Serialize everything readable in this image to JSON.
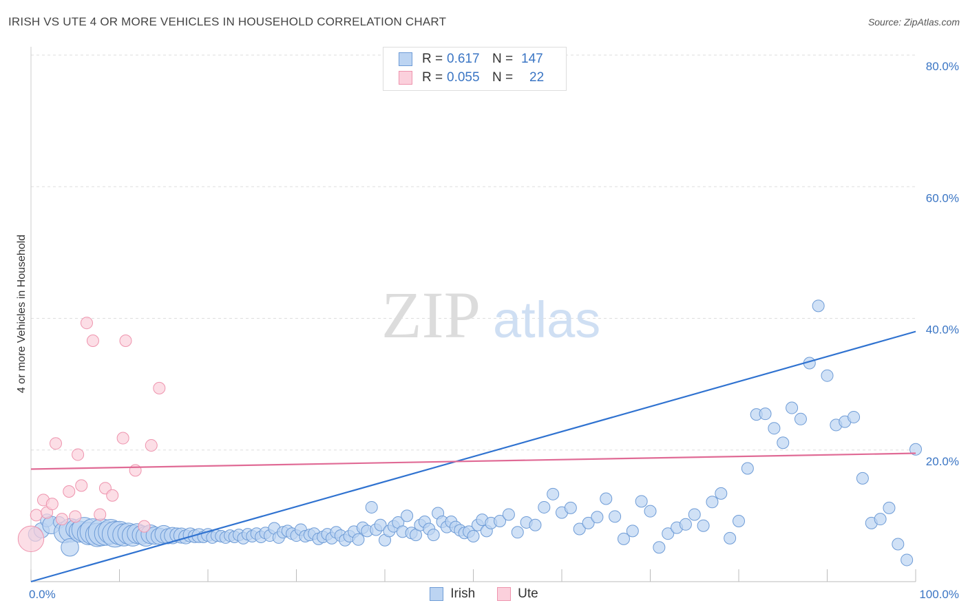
{
  "title": "IRISH VS UTE 4 OR MORE VEHICLES IN HOUSEHOLD CORRELATION CHART",
  "source": "Source: ZipAtlas.com",
  "watermark": {
    "zip": "ZIP",
    "atlas": "atlas"
  },
  "legend": {
    "rows": [
      {
        "r_label": "R =",
        "r_value": "0.617",
        "n_label": "N =",
        "n_value": "147"
      },
      {
        "r_label": "R =",
        "r_value": "0.055",
        "n_label": "N =",
        "n_value": "22"
      }
    ]
  },
  "colors": {
    "irish_fill": "#bcd4f2",
    "irish_stroke": "#6d9bd6",
    "irish_line": "#2f72d0",
    "ute_fill": "#fbd0dc",
    "ute_stroke": "#ee93ad",
    "ute_line": "#e06a95",
    "tick": "#3a75c4",
    "grid": "#dddddd"
  },
  "chart_data": {
    "type": "scatter",
    "title": "IRISH VS UTE 4 OR MORE VEHICLES IN HOUSEHOLD CORRELATION CHART",
    "xlabel": "",
    "ylabel": "4 or more Vehicles in Household",
    "xlim": [
      0,
      100
    ],
    "ylim": [
      0,
      80
    ],
    "x_ticks": [
      {
        "value": 0,
        "label": "0.0%"
      },
      {
        "value": 100,
        "label": "100.0%"
      }
    ],
    "y_ticks": [
      {
        "value": 20,
        "label": "20.0%"
      },
      {
        "value": 40,
        "label": "40.0%"
      },
      {
        "value": 60,
        "label": "60.0%"
      },
      {
        "value": 80,
        "label": "80.0%"
      }
    ],
    "grid": true,
    "legend_position": "top-center",
    "series": [
      {
        "name": "Irish",
        "R": 0.617,
        "N": 147,
        "trend": {
          "x": [
            0,
            100
          ],
          "y": [
            0.0,
            38.0
          ]
        },
        "points": [
          [
            0.5,
            7.2,
            1.2
          ],
          [
            1.2,
            7.8,
            1.3
          ],
          [
            1.8,
            9.3,
            1.1
          ],
          [
            2.3,
            8.6,
            1.5
          ],
          [
            3.2,
            9.0,
            1.0
          ],
          [
            3.8,
            7.5,
            1.8
          ],
          [
            4.5,
            7.8,
            2.0
          ],
          [
            4.4,
            5.2,
            1.5
          ],
          [
            5.0,
            8.0,
            1.6
          ],
          [
            5.5,
            7.6,
            1.8
          ],
          [
            6.0,
            7.9,
            2.1
          ],
          [
            6.5,
            7.3,
            1.9
          ],
          [
            7.0,
            7.6,
            2.2
          ],
          [
            7.5,
            7.1,
            2.0
          ],
          [
            8.0,
            7.5,
            2.3
          ],
          [
            8.5,
            7.3,
            2.0
          ],
          [
            9.0,
            7.6,
            2.1
          ],
          [
            9.5,
            7.2,
            2.2
          ],
          [
            10.0,
            7.4,
            2.0
          ],
          [
            10.5,
            7.1,
            1.9
          ],
          [
            11.0,
            7.3,
            1.8
          ],
          [
            11.5,
            7.0,
            1.8
          ],
          [
            12.0,
            7.3,
            1.7
          ],
          [
            12.5,
            7.1,
            1.6
          ],
          [
            13.0,
            6.9,
            1.7
          ],
          [
            13.5,
            7.2,
            1.6
          ],
          [
            14.0,
            7.0,
            1.5
          ],
          [
            14.5,
            6.9,
            1.4
          ],
          [
            15.0,
            7.2,
            1.5
          ],
          [
            15.5,
            6.9,
            1.3
          ],
          [
            16.0,
            7.0,
            1.4
          ],
          [
            16.5,
            7.1,
            1.2
          ],
          [
            17.0,
            7.0,
            1.3
          ],
          [
            17.5,
            6.8,
            1.2
          ],
          [
            18.0,
            7.1,
            1.2
          ],
          [
            18.5,
            6.9,
            1.1
          ],
          [
            19.0,
            7.0,
            1.2
          ],
          [
            19.5,
            6.8,
            1.0
          ],
          [
            20.0,
            7.1,
            1.1
          ],
          [
            20.5,
            6.7,
            1.0
          ],
          [
            21.0,
            7.0,
            1.0
          ],
          [
            21.5,
            6.9,
            1.0
          ],
          [
            22.0,
            6.7,
            1.0
          ],
          [
            22.5,
            7.0,
            1.0
          ],
          [
            23.0,
            6.8,
            1.0
          ],
          [
            23.5,
            7.1,
            1.0
          ],
          [
            24.0,
            6.6,
            1.0
          ],
          [
            24.5,
            7.2,
            1.0
          ],
          [
            25.0,
            6.9,
            1.0
          ],
          [
            25.5,
            7.3,
            1.0
          ],
          [
            26.0,
            6.8,
            1.0
          ],
          [
            26.5,
            7.4,
            1.0
          ],
          [
            27.0,
            7.0,
            1.0
          ],
          [
            27.5,
            8.1,
            1.0
          ],
          [
            28.0,
            6.7,
            1.0
          ],
          [
            28.5,
            7.5,
            1.0
          ],
          [
            29.0,
            7.7,
            1.0
          ],
          [
            29.5,
            7.3,
            1.0
          ],
          [
            30.0,
            7.0,
            1.0
          ],
          [
            30.5,
            7.9,
            1.0
          ],
          [
            31.0,
            6.9,
            1.0
          ],
          [
            31.5,
            7.1,
            1.0
          ],
          [
            32.0,
            7.3,
            1.0
          ],
          [
            32.5,
            6.5,
            1.0
          ],
          [
            33.0,
            6.8,
            1.0
          ],
          [
            33.5,
            7.2,
            1.0
          ],
          [
            34.0,
            6.6,
            1.0
          ],
          [
            34.5,
            7.5,
            1.0
          ],
          [
            35.0,
            7.0,
            1.0
          ],
          [
            35.5,
            6.3,
            1.0
          ],
          [
            36.0,
            6.9,
            1.0
          ],
          [
            36.5,
            7.6,
            1.0
          ],
          [
            37.0,
            6.4,
            1.0
          ],
          [
            37.5,
            8.2,
            1.0
          ],
          [
            38.0,
            7.7,
            1.0
          ],
          [
            38.5,
            11.3,
            1.0
          ],
          [
            39.0,
            7.9,
            1.0
          ],
          [
            39.5,
            8.6,
            1.0
          ],
          [
            40.0,
            6.3,
            1.0
          ],
          [
            40.5,
            7.7,
            1.0
          ],
          [
            41.0,
            8.4,
            1.0
          ],
          [
            41.5,
            9.0,
            1.0
          ],
          [
            42.0,
            7.6,
            1.0
          ],
          [
            42.5,
            10.0,
            1.0
          ],
          [
            43.0,
            7.4,
            1.0
          ],
          [
            43.5,
            7.1,
            1.0
          ],
          [
            44.0,
            8.6,
            1.0
          ],
          [
            44.5,
            9.1,
            1.0
          ],
          [
            45.0,
            8.0,
            1.0
          ],
          [
            45.5,
            7.1,
            1.0
          ],
          [
            46.0,
            10.4,
            1.0
          ],
          [
            46.5,
            9.1,
            1.0
          ],
          [
            47.0,
            8.3,
            1.0
          ],
          [
            47.5,
            9.1,
            1.0
          ],
          [
            48.0,
            8.3,
            1.0
          ],
          [
            48.5,
            7.8,
            1.0
          ],
          [
            49.0,
            7.4,
            1.0
          ],
          [
            49.5,
            7.6,
            1.0
          ],
          [
            50.0,
            6.9,
            1.0
          ],
          [
            50.5,
            8.6,
            1.0
          ],
          [
            51.0,
            9.4,
            1.0
          ],
          [
            51.5,
            7.7,
            1.0
          ],
          [
            52.0,
            8.9,
            1.0
          ],
          [
            53.0,
            9.2,
            1.0
          ],
          [
            54.0,
            10.2,
            1.0
          ],
          [
            55.0,
            7.5,
            1.0
          ],
          [
            56.0,
            9.0,
            1.0
          ],
          [
            57.0,
            8.6,
            1.0
          ],
          [
            58.0,
            11.3,
            1.0
          ],
          [
            59.0,
            13.3,
            1.0
          ],
          [
            60.0,
            10.5,
            1.0
          ],
          [
            61.0,
            11.2,
            1.0
          ],
          [
            62.0,
            8.0,
            1.0
          ],
          [
            63.0,
            8.9,
            1.0
          ],
          [
            64.0,
            9.8,
            1.0
          ],
          [
            65.0,
            12.6,
            1.0
          ],
          [
            66.0,
            9.9,
            1.0
          ],
          [
            67.0,
            6.5,
            1.0
          ],
          [
            68.0,
            7.7,
            1.0
          ],
          [
            69.0,
            12.2,
            1.0
          ],
          [
            70.0,
            10.7,
            1.0
          ],
          [
            71.0,
            5.2,
            1.0
          ],
          [
            72.0,
            7.3,
            1.0
          ],
          [
            73.0,
            8.2,
            1.0
          ],
          [
            74.0,
            8.7,
            1.0
          ],
          [
            75.0,
            10.2,
            1.0
          ],
          [
            76.0,
            8.5,
            1.0
          ],
          [
            77.0,
            12.1,
            1.0
          ],
          [
            78.0,
            13.4,
            1.0
          ],
          [
            79.0,
            6.6,
            1.0
          ],
          [
            80.0,
            9.2,
            1.0
          ],
          [
            81.0,
            17.2,
            1.0
          ],
          [
            82.0,
            25.4,
            1.0
          ],
          [
            83.0,
            25.5,
            1.0
          ],
          [
            84.0,
            23.3,
            1.0
          ],
          [
            85.0,
            21.1,
            1.0
          ],
          [
            86.0,
            26.4,
            1.0
          ],
          [
            87.0,
            24.7,
            1.0
          ],
          [
            88.0,
            33.2,
            1.0
          ],
          [
            89.0,
            41.9,
            1.0
          ],
          [
            90.0,
            31.3,
            1.0
          ],
          [
            91.0,
            23.8,
            1.0
          ],
          [
            92.0,
            24.3,
            1.0
          ],
          [
            93.0,
            25.0,
            1.0
          ],
          [
            94.0,
            15.7,
            1.0
          ],
          [
            95.0,
            8.9,
            1.0
          ],
          [
            96.0,
            9.5,
            1.0
          ],
          [
            97.0,
            11.2,
            1.0
          ],
          [
            98.0,
            5.7,
            1.0
          ],
          [
            99.0,
            3.3,
            1.0
          ],
          [
            100.0,
            20.1,
            1.0
          ]
        ]
      },
      {
        "name": "Ute",
        "R": 0.055,
        "N": 22,
        "trend": {
          "x": [
            0,
            100
          ],
          "y": [
            17.1,
            19.5
          ]
        },
        "points": [
          [
            0.0,
            6.5,
            2.2
          ],
          [
            0.6,
            10.1,
            1.0
          ],
          [
            1.4,
            12.4,
            1.0
          ],
          [
            1.8,
            10.5,
            1.0
          ],
          [
            2.4,
            11.8,
            1.0
          ],
          [
            2.8,
            21.0,
            1.0
          ],
          [
            3.5,
            9.5,
            1.0
          ],
          [
            4.3,
            13.7,
            1.0
          ],
          [
            5.0,
            9.9,
            1.0
          ],
          [
            5.3,
            19.3,
            1.0
          ],
          [
            5.7,
            14.6,
            1.0
          ],
          [
            6.3,
            39.3,
            1.0
          ],
          [
            7.0,
            36.6,
            1.0
          ],
          [
            7.8,
            10.2,
            1.0
          ],
          [
            8.4,
            14.2,
            1.0
          ],
          [
            9.2,
            13.1,
            1.0
          ],
          [
            10.4,
            21.8,
            1.0
          ],
          [
            10.7,
            36.6,
            1.0
          ],
          [
            11.8,
            16.9,
            1.0
          ],
          [
            12.8,
            8.4,
            1.0
          ],
          [
            13.6,
            20.7,
            1.0
          ],
          [
            14.5,
            29.4,
            1.0
          ]
        ]
      }
    ]
  }
}
